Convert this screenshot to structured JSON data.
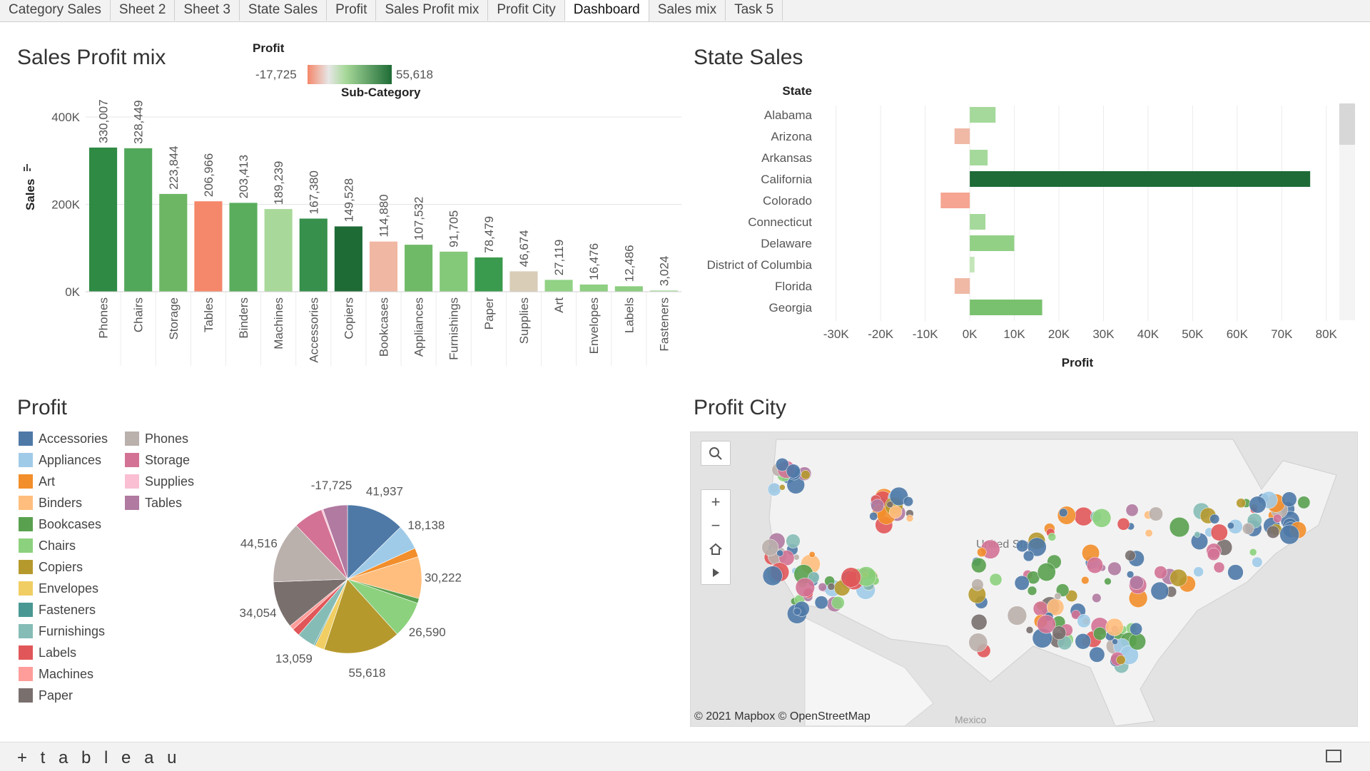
{
  "tabs": [
    {
      "label": "Category Sales",
      "active": false
    },
    {
      "label": "Sheet 2",
      "active": false
    },
    {
      "label": "Sheet 3",
      "active": false
    },
    {
      "label": "State Sales",
      "active": false
    },
    {
      "label": "Profit",
      "active": false
    },
    {
      "label": "Sales Profit mix",
      "active": false
    },
    {
      "label": "Profit City",
      "active": false
    },
    {
      "label": "Dashboard",
      "active": true
    },
    {
      "label": "Sales mix",
      "active": false
    },
    {
      "label": "Task 5",
      "active": false
    }
  ],
  "sales_profit_mix": {
    "title": "Sales Profit mix",
    "legend": {
      "title": "Profit",
      "min_label": "-17,725",
      "max_label": "55,618"
    },
    "header": "Sub-Category",
    "ylabel": "Sales"
  },
  "state_sales": {
    "title": "State Sales"
  },
  "profit": {
    "title": "Profit",
    "legend_col1": [
      {
        "label": "Accessories",
        "color": "#4e79a7"
      },
      {
        "label": "Appliances",
        "color": "#a0cbe8"
      },
      {
        "label": "Art",
        "color": "#f28e2b"
      },
      {
        "label": "Binders",
        "color": "#ffbe7d"
      },
      {
        "label": "Bookcases",
        "color": "#59a14f"
      },
      {
        "label": "Chairs",
        "color": "#8cd17d"
      },
      {
        "label": "Copiers",
        "color": "#b6992d"
      },
      {
        "label": "Envelopes",
        "color": "#f1ce63"
      },
      {
        "label": "Fasteners",
        "color": "#499894"
      },
      {
        "label": "Furnishings",
        "color": "#86bcb6"
      },
      {
        "label": "Labels",
        "color": "#e15759"
      },
      {
        "label": "Machines",
        "color": "#ff9d9a"
      },
      {
        "label": "Paper",
        "color": "#79706e"
      }
    ],
    "legend_col2": [
      {
        "label": "Phones",
        "color": "#bab0ac"
      },
      {
        "label": "Storage",
        "color": "#d37295"
      },
      {
        "label": "Supplies",
        "color": "#fabfd2"
      },
      {
        "label": "Tables",
        "color": "#b07aa1"
      }
    ]
  },
  "profit_city": {
    "title": "Profit City",
    "attribution": "© 2021 Mapbox  © OpenStreetMap",
    "country_label": "United States",
    "south_label": "Mexico"
  },
  "footer": {
    "brand": "+ t a b l e a u"
  },
  "chart_data": [
    {
      "type": "bar",
      "title": "Sales Profit mix",
      "xlabel": "Sub-Category",
      "ylabel": "Sales",
      "ylim": [
        0,
        480000
      ],
      "yticks": [
        0,
        200000,
        400000
      ],
      "ytick_labels": [
        "0K",
        "200K",
        "400K"
      ],
      "categories": [
        "Phones",
        "Chairs",
        "Storage",
        "Tables",
        "Binders",
        "Machines",
        "Accessories",
        "Copiers",
        "Bookcases",
        "Appliances",
        "Furnishings",
        "Paper",
        "Supplies",
        "Art",
        "Envelopes",
        "Labels",
        "Fasteners"
      ],
      "values": [
        330007,
        328449,
        223844,
        206966,
        203413,
        189239,
        167380,
        149528,
        114880,
        107532,
        91705,
        78479,
        46674,
        27119,
        16476,
        12486,
        3024
      ],
      "value_labels": [
        "330,007",
        "328,449",
        "223,844",
        "206,966",
        "203,413",
        "189,239",
        "167,380",
        "149,528",
        "114,880",
        "107,532",
        "91,705",
        "78,479",
        "46,674",
        "27,119",
        "16,476",
        "12,486",
        "3,024"
      ],
      "colors": [
        "#2f8a44",
        "#52a85a",
        "#6db764",
        "#f5876a",
        "#59ad5d",
        "#a8d99a",
        "#37904b",
        "#1f6b36",
        "#f0b8a3",
        "#6fba66",
        "#84c879",
        "#3a9a4d",
        "#d9cdb8",
        "#91d285",
        "#8ecf81",
        "#8ccd80",
        "#b3dfa9"
      ]
    },
    {
      "type": "bar",
      "orientation": "horizontal",
      "title": "State Sales",
      "ylabel": "State",
      "xlabel": "Profit",
      "xlim": [
        -32000,
        82000
      ],
      "xticks": [
        -30000,
        -20000,
        -10000,
        0,
        10000,
        20000,
        30000,
        40000,
        50000,
        60000,
        70000,
        80000
      ],
      "xtick_labels": [
        "-30K",
        "-20K",
        "-10K",
        "0K",
        "10K",
        "20K",
        "30K",
        "40K",
        "50K",
        "60K",
        "70K",
        "80K"
      ],
      "categories": [
        "Alabama",
        "Arizona",
        "Arkansas",
        "California",
        "Colorado",
        "Connecticut",
        "Delaware",
        "District of Columbia",
        "Florida",
        "Georgia"
      ],
      "values": [
        5787,
        -3428,
        4009,
        76381,
        -6528,
        3511,
        9977,
        1060,
        -3399,
        16250
      ],
      "colors": [
        "#a5d99b",
        "#efb9a6",
        "#a5d99b",
        "#1e6b38",
        "#f5a592",
        "#a5d99b",
        "#92d086",
        "#c3e6b8",
        "#efb9a6",
        "#79c16e"
      ]
    },
    {
      "type": "pie",
      "title": "Profit",
      "categories": [
        "Accessories",
        "Appliances",
        "Art",
        "Binders",
        "Bookcases",
        "Chairs",
        "Copiers",
        "Envelopes",
        "Fasteners",
        "Furnishings",
        "Labels",
        "Machines",
        "Paper",
        "Phones",
        "Storage",
        "Supplies",
        "Tables"
      ],
      "values": [
        41937,
        18138,
        6528,
        30222,
        -3473,
        26590,
        55618,
        6964,
        950,
        13059,
        5546,
        3385,
        34054,
        44516,
        21279,
        -1189,
        -17725
      ],
      "value_labels": [
        "41,937",
        "18,138",
        "",
        "30,222",
        "",
        "26,590",
        "55,618",
        "",
        "",
        "13,059",
        "",
        "",
        "34,054",
        "44,516",
        "",
        "",
        "-17,725"
      ]
    }
  ]
}
